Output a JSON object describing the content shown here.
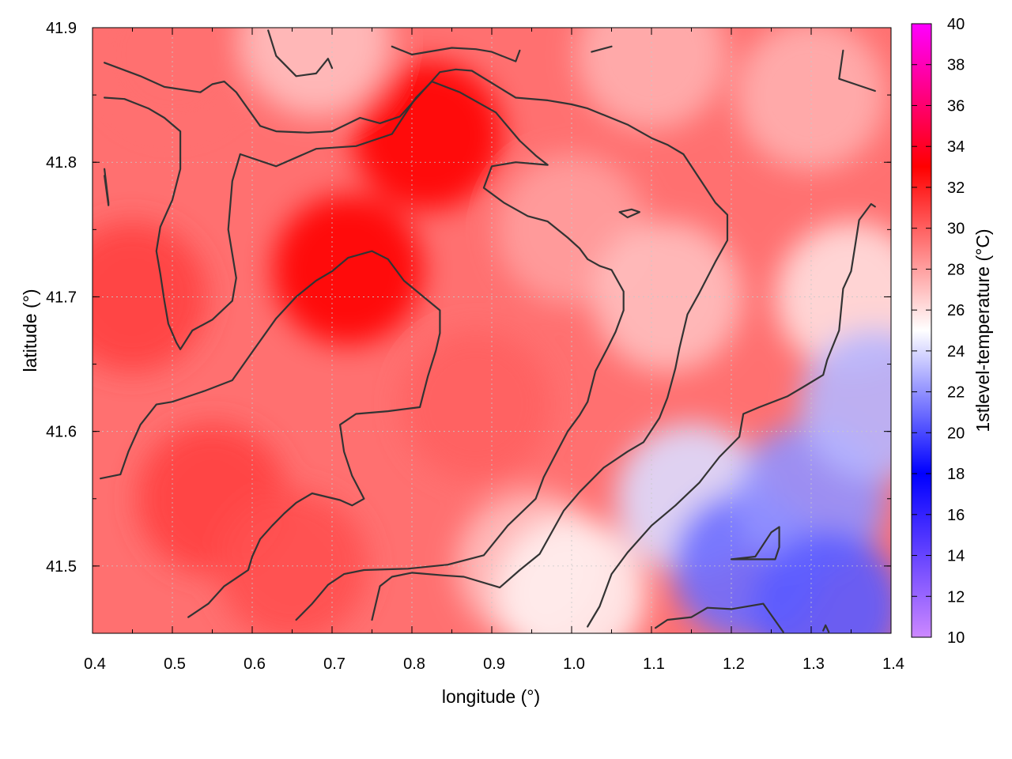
{
  "chart_data": {
    "type": "heatmap",
    "xlabel": "longitude (°)",
    "ylabel": "latitude (°)",
    "colorbar_label": "1stlevel-temperature (°C)",
    "xlim": [
      0.4,
      1.4
    ],
    "ylim": [
      41.45,
      41.9
    ],
    "xticks": [
      "0.4",
      "0.5",
      "0.6",
      "0.7",
      "0.8",
      "0.9",
      "1.0",
      "1.1",
      "1.2",
      "1.3",
      "1.4"
    ],
    "yticks": [
      "41.5",
      "41.6",
      "41.7",
      "41.8",
      "41.9"
    ],
    "colorbar_range": [
      10,
      40
    ],
    "colorbar_ticks": [
      "10",
      "12",
      "14",
      "16",
      "18",
      "20",
      "22",
      "24",
      "26",
      "28",
      "30",
      "32",
      "34",
      "36",
      "38",
      "40"
    ],
    "colormap": [
      {
        "value": 10,
        "color": "#cc88ff"
      },
      {
        "value": 18,
        "color": "#0000ff"
      },
      {
        "value": 25,
        "color": "#ffffff"
      },
      {
        "value": 33,
        "color": "#ff0000"
      },
      {
        "value": 40,
        "color": "#ff00ff"
      }
    ],
    "grid": true,
    "temperature_field_samples": [
      {
        "lon": 0.72,
        "lat": 41.72,
        "temp": 33
      },
      {
        "lon": 0.82,
        "lat": 41.82,
        "temp": 33
      },
      {
        "lon": 0.45,
        "lat": 41.7,
        "temp": 31
      },
      {
        "lon": 0.55,
        "lat": 41.55,
        "temp": 31
      },
      {
        "lon": 0.65,
        "lat": 41.5,
        "temp": 30.5
      },
      {
        "lon": 0.88,
        "lat": 41.62,
        "temp": 30
      },
      {
        "lon": 1.0,
        "lat": 41.75,
        "temp": 28
      },
      {
        "lon": 1.12,
        "lat": 41.7,
        "temp": 27
      },
      {
        "lon": 1.3,
        "lat": 41.85,
        "temp": 27.5
      },
      {
        "lon": 1.35,
        "lat": 41.7,
        "temp": 26
      },
      {
        "lon": 0.95,
        "lat": 41.5,
        "temp": 27
      },
      {
        "lon": 1.0,
        "lat": 41.48,
        "temp": 25.5
      },
      {
        "lon": 1.15,
        "lat": 41.55,
        "temp": 24
      },
      {
        "lon": 1.22,
        "lat": 41.5,
        "temp": 21
      },
      {
        "lon": 1.3,
        "lat": 41.55,
        "temp": 22
      },
      {
        "lon": 1.32,
        "lat": 41.47,
        "temp": 20.5
      },
      {
        "lon": 1.38,
        "lat": 41.62,
        "temp": 23
      },
      {
        "lon": 0.5,
        "lat": 41.88,
        "temp": 29.5
      },
      {
        "lon": 0.68,
        "lat": 41.89,
        "temp": 27
      },
      {
        "lon": 1.1,
        "lat": 41.88,
        "temp": 27.5
      }
    ],
    "contours": [
      {
        "level": 26,
        "points": [
          [
            0.415,
            41.874
          ],
          [
            0.46,
            41.864
          ],
          [
            0.49,
            41.856
          ],
          [
            0.535,
            41.852
          ],
          [
            0.55,
            41.858
          ],
          [
            0.565,
            41.86
          ],
          [
            0.58,
            41.852
          ],
          [
            0.61,
            41.827
          ],
          [
            0.63,
            41.823
          ],
          [
            0.67,
            41.822
          ],
          [
            0.7,
            41.823
          ],
          [
            0.735,
            41.833
          ],
          [
            0.76,
            41.829
          ],
          [
            0.785,
            41.834
          ],
          [
            0.82,
            41.857
          ],
          [
            0.835,
            41.867
          ],
          [
            0.855,
            41.869
          ],
          [
            0.875,
            41.868
          ],
          [
            0.93,
            41.848
          ],
          [
            0.97,
            41.846
          ],
          [
            1.0,
            41.843
          ],
          [
            1.02,
            41.84
          ],
          [
            1.07,
            41.828
          ],
          [
            1.1,
            41.818
          ],
          [
            1.12,
            41.813
          ],
          [
            1.14,
            41.806
          ],
          [
            1.16,
            41.788
          ],
          [
            1.18,
            41.77
          ],
          [
            1.195,
            41.761
          ],
          [
            1.195,
            41.742
          ],
          [
            1.18,
            41.726
          ],
          [
            1.16,
            41.703
          ],
          [
            1.145,
            41.687
          ],
          [
            1.135,
            41.662
          ],
          [
            1.13,
            41.647
          ],
          [
            1.12,
            41.625
          ],
          [
            1.11,
            41.61
          ],
          [
            1.09,
            41.592
          ],
          [
            1.07,
            41.585
          ],
          [
            1.04,
            41.573
          ],
          [
            1.01,
            41.555
          ],
          [
            0.99,
            41.541
          ],
          [
            0.96,
            41.509
          ],
          [
            0.935,
            41.497
          ],
          [
            0.91,
            41.484
          ],
          [
            0.865,
            41.492
          ],
          [
            0.84,
            41.493
          ],
          [
            0.8,
            41.495
          ],
          [
            0.775,
            41.492
          ],
          [
            0.76,
            41.485
          ],
          [
            0.75,
            41.46
          ]
        ]
      },
      {
        "level": 30,
        "points": [
          [
            0.41,
            41.565
          ],
          [
            0.435,
            41.568
          ],
          [
            0.445,
            41.585
          ],
          [
            0.46,
            41.605
          ],
          [
            0.48,
            41.62
          ],
          [
            0.5,
            41.622
          ],
          [
            0.54,
            41.63
          ],
          [
            0.575,
            41.638
          ],
          [
            0.6,
            41.659
          ],
          [
            0.63,
            41.684
          ],
          [
            0.655,
            41.7
          ],
          [
            0.68,
            41.712
          ],
          [
            0.7,
            41.719
          ],
          [
            0.72,
            41.729
          ],
          [
            0.75,
            41.734
          ],
          [
            0.77,
            41.728
          ],
          [
            0.79,
            41.712
          ],
          [
            0.835,
            41.69
          ],
          [
            0.835,
            41.673
          ],
          [
            0.83,
            41.66
          ],
          [
            0.82,
            41.641
          ],
          [
            0.81,
            41.618
          ],
          [
            0.77,
            41.615
          ],
          [
            0.73,
            41.613
          ],
          [
            0.71,
            41.605
          ],
          [
            0.715,
            41.585
          ],
          [
            0.725,
            41.567
          ],
          [
            0.74,
            41.55
          ],
          [
            0.725,
            41.545
          ],
          [
            0.71,
            41.549
          ],
          [
            0.675,
            41.554
          ],
          [
            0.655,
            41.547
          ],
          [
            0.64,
            41.539
          ],
          [
            0.625,
            41.53
          ],
          [
            0.61,
            41.52
          ],
          [
            0.6,
            41.507
          ],
          [
            0.595,
            41.497
          ],
          [
            0.58,
            41.491
          ],
          [
            0.565,
            41.485
          ],
          [
            0.545,
            41.472
          ],
          [
            0.52,
            41.462
          ]
        ]
      },
      {
        "level": 30,
        "points": [
          [
            0.415,
            41.848
          ],
          [
            0.44,
            41.847
          ],
          [
            0.47,
            41.84
          ],
          [
            0.49,
            41.833
          ],
          [
            0.51,
            41.823
          ],
          [
            0.51,
            41.808
          ],
          [
            0.51,
            41.795
          ],
          [
            0.5,
            41.772
          ],
          [
            0.485,
            41.752
          ],
          [
            0.48,
            41.734
          ],
          [
            0.485,
            41.717
          ],
          [
            0.49,
            41.697
          ],
          [
            0.495,
            41.68
          ],
          [
            0.505,
            41.666
          ],
          [
            0.51,
            41.661
          ],
          [
            0.525,
            41.675
          ],
          [
            0.55,
            41.683
          ],
          [
            0.575,
            41.697
          ],
          [
            0.58,
            41.714
          ],
          [
            0.57,
            41.75
          ],
          [
            0.575,
            41.786
          ],
          [
            0.585,
            41.806
          ],
          [
            0.63,
            41.797
          ],
          [
            0.68,
            41.81
          ],
          [
            0.73,
            41.812
          ],
          [
            0.775,
            41.821
          ],
          [
            0.805,
            41.848
          ],
          [
            0.825,
            41.86
          ],
          [
            0.86,
            41.852
          ],
          [
            0.89,
            41.842
          ],
          [
            0.905,
            41.837
          ],
          [
            0.935,
            41.816
          ],
          [
            0.955,
            41.805
          ],
          [
            0.97,
            41.798
          ],
          [
            0.93,
            41.8
          ],
          [
            0.9,
            41.797
          ],
          [
            0.89,
            41.781
          ],
          [
            0.915,
            41.77
          ],
          [
            0.945,
            41.76
          ],
          [
            0.97,
            41.756
          ],
          [
            0.995,
            41.744
          ],
          [
            1.01,
            41.736
          ],
          [
            1.02,
            41.728
          ],
          [
            1.035,
            41.723
          ],
          [
            1.05,
            41.72
          ],
          [
            1.065,
            41.704
          ],
          [
            1.065,
            41.69
          ],
          [
            1.055,
            41.674
          ],
          [
            1.045,
            41.662
          ],
          [
            1.03,
            41.645
          ],
          [
            1.02,
            41.622
          ],
          [
            1.01,
            41.612
          ],
          [
            0.995,
            41.6
          ],
          [
            0.98,
            41.583
          ],
          [
            0.965,
            41.566
          ],
          [
            0.955,
            41.55
          ],
          [
            0.92,
            41.53
          ],
          [
            0.89,
            41.508
          ],
          [
            0.845,
            41.501
          ],
          [
            0.795,
            41.498
          ],
          [
            0.74,
            41.497
          ],
          [
            0.715,
            41.494
          ],
          [
            0.695,
            41.486
          ],
          [
            0.675,
            41.472
          ],
          [
            0.655,
            41.46
          ]
        ]
      },
      {
        "level": 26,
        "points": [
          [
            0.415,
            41.79
          ],
          [
            0.42,
            41.768
          ],
          [
            0.42,
            41.77
          ],
          [
            0.415,
            41.795
          ]
        ]
      },
      {
        "level": 26,
        "points": [
          [
            0.62,
            41.898
          ],
          [
            0.63,
            41.879
          ],
          [
            0.655,
            41.864
          ],
          [
            0.68,
            41.866
          ],
          [
            0.695,
            41.877
          ],
          [
            0.7,
            41.87
          ]
        ]
      },
      {
        "level": 26,
        "points": [
          [
            0.775,
            41.886
          ],
          [
            0.8,
            41.88
          ],
          [
            0.85,
            41.885
          ],
          [
            0.88,
            41.884
          ],
          [
            0.9,
            41.882
          ],
          [
            0.93,
            41.875
          ],
          [
            0.935,
            41.883
          ]
        ]
      },
      {
        "level": 26,
        "points": [
          [
            1.025,
            41.882
          ],
          [
            1.05,
            41.886
          ]
        ]
      },
      {
        "level": 26,
        "points": [
          [
            1.34,
            41.883
          ],
          [
            1.335,
            41.862
          ],
          [
            1.355,
            41.858
          ],
          [
            1.38,
            41.853
          ]
        ]
      },
      {
        "level": 26,
        "points": [
          [
            1.06,
            41.763
          ],
          [
            1.075,
            41.765
          ],
          [
            1.085,
            41.763
          ],
          [
            1.07,
            41.759
          ],
          [
            1.06,
            41.763
          ]
        ]
      },
      {
        "level": 24,
        "points": [
          [
            1.02,
            41.455
          ],
          [
            1.035,
            41.47
          ],
          [
            1.05,
            41.494
          ],
          [
            1.07,
            41.51
          ],
          [
            1.1,
            41.53
          ],
          [
            1.13,
            41.545
          ],
          [
            1.16,
            41.562
          ],
          [
            1.185,
            41.581
          ],
          [
            1.21,
            41.596
          ],
          [
            1.215,
            41.613
          ],
          [
            1.235,
            41.618
          ],
          [
            1.27,
            41.626
          ],
          [
            1.29,
            41.633
          ],
          [
            1.315,
            41.642
          ],
          [
            1.32,
            41.653
          ],
          [
            1.335,
            41.675
          ],
          [
            1.34,
            41.706
          ],
          [
            1.35,
            41.719
          ],
          [
            1.355,
            41.738
          ],
          [
            1.36,
            41.757
          ],
          [
            1.375,
            41.769
          ],
          [
            1.38,
            41.767
          ]
        ]
      },
      {
        "level": 22,
        "points": [
          [
            1.2,
            41.505
          ],
          [
            1.23,
            41.507
          ],
          [
            1.25,
            41.525
          ],
          [
            1.26,
            41.529
          ],
          [
            1.26,
            41.514
          ],
          [
            1.255,
            41.505
          ],
          [
            1.2,
            41.505
          ]
        ]
      },
      {
        "level": 22,
        "points": [
          [
            1.105,
            41.454
          ],
          [
            1.12,
            41.46
          ],
          [
            1.15,
            41.462
          ],
          [
            1.17,
            41.469
          ],
          [
            1.2,
            41.468
          ],
          [
            1.24,
            41.472
          ],
          [
            1.265,
            41.451
          ]
        ]
      },
      {
        "level": 22,
        "points": [
          [
            1.315,
            41.452
          ],
          [
            1.318,
            41.456
          ],
          [
            1.322,
            41.451
          ]
        ]
      }
    ]
  }
}
